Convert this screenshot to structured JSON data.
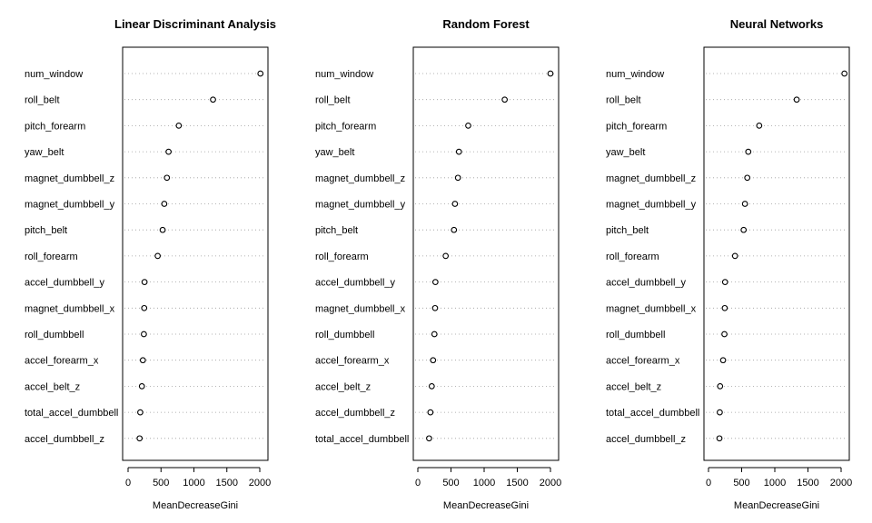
{
  "chart_data": [
    {
      "type": "scatter",
      "title": "Linear Discriminant Analysis",
      "xlabel": "MeanDecreaseGini",
      "ylabel": "",
      "xlim": [
        0,
        2000
      ],
      "xticks": [
        "0",
        "500",
        "1000",
        "1500",
        "2000"
      ],
      "grid": "dotted horizontal guides",
      "series": [
        {
          "categories": [
            "num_window",
            "roll_belt",
            "pitch_forearm",
            "yaw_belt",
            "magnet_dumbbell_z",
            "magnet_dumbbell_y",
            "pitch_belt",
            "roll_forearm",
            "accel_dumbbell_y",
            "magnet_dumbbell_x",
            "roll_dumbbell",
            "accel_forearm_x",
            "accel_belt_z",
            "total_accel_dumbbell",
            "accel_dumbbell_z"
          ],
          "values": [
            2010,
            1290,
            770,
            615,
            590,
            550,
            525,
            450,
            250,
            245,
            240,
            225,
            210,
            185,
            175
          ]
        }
      ]
    },
    {
      "type": "scatter",
      "title": "Random Forest",
      "xlabel": "MeanDecreaseGini",
      "ylabel": "",
      "xlim": [
        0,
        2000
      ],
      "xticks": [
        "0",
        "500",
        "1000",
        "1500",
        "2000"
      ],
      "grid": "dotted horizontal guides",
      "series": [
        {
          "categories": [
            "num_window",
            "roll_belt",
            "pitch_forearm",
            "yaw_belt",
            "magnet_dumbbell_z",
            "magnet_dumbbell_y",
            "pitch_belt",
            "roll_forearm",
            "accel_dumbbell_y",
            "magnet_dumbbell_x",
            "roll_dumbbell",
            "accel_forearm_x",
            "accel_belt_z",
            "accel_dumbbell_z",
            "total_accel_dumbbell"
          ],
          "values": [
            2000,
            1310,
            760,
            620,
            605,
            560,
            545,
            420,
            265,
            260,
            250,
            230,
            210,
            190,
            170
          ]
        }
      ]
    },
    {
      "type": "scatter",
      "title": "Neural Networks",
      "xlabel": "MeanDecreaseGini",
      "ylabel": "",
      "xlim": [
        0,
        2000
      ],
      "xticks": [
        "0",
        "500",
        "1000",
        "1500",
        "2000"
      ],
      "grid": "dotted horizontal guides",
      "series": [
        {
          "categories": [
            "num_window",
            "roll_belt",
            "pitch_forearm",
            "yaw_belt",
            "magnet_dumbbell_z",
            "magnet_dumbbell_y",
            "pitch_belt",
            "roll_forearm",
            "accel_dumbbell_y",
            "magnet_dumbbell_x",
            "roll_dumbbell",
            "accel_forearm_x",
            "accel_belt_z",
            "total_accel_dumbbell",
            "accel_dumbbell_z"
          ],
          "values": [
            2050,
            1330,
            765,
            600,
            585,
            550,
            530,
            400,
            250,
            245,
            240,
            220,
            175,
            170,
            165
          ]
        }
      ]
    }
  ]
}
